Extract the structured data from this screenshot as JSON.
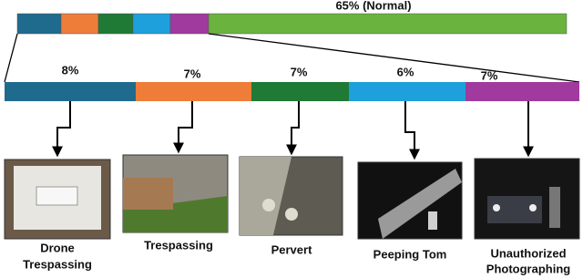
{
  "overview": {
    "normal_label": "65% (Normal)"
  },
  "breakdown": [
    {
      "percent": "8%",
      "caption": [
        "Drone",
        "Trespassing"
      ]
    },
    {
      "percent": "7%",
      "caption": [
        "Trespassing"
      ]
    },
    {
      "percent": "7%",
      "caption": [
        "Pervert"
      ]
    },
    {
      "percent": "6%",
      "caption": [
        "Peeping Tom"
      ]
    },
    {
      "percent": "7%",
      "caption": [
        "Unauthorized",
        "Photographing"
      ]
    }
  ]
}
